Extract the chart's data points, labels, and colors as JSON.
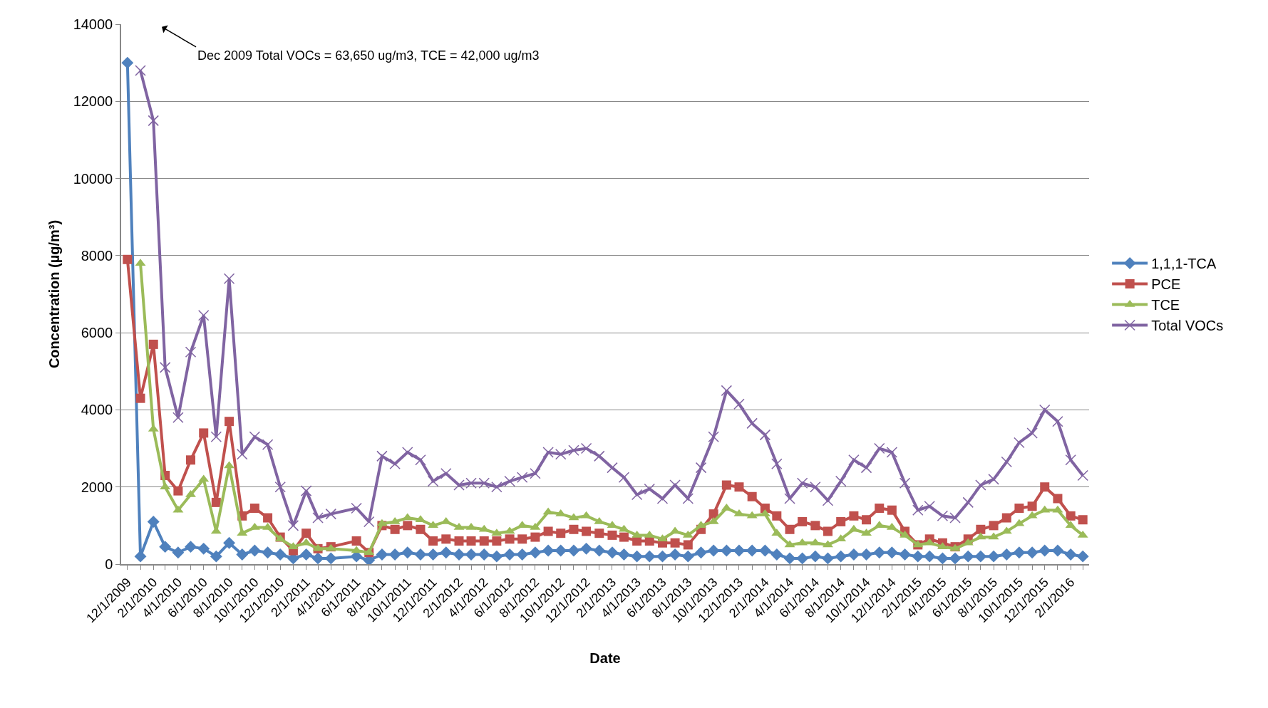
{
  "chart_data": {
    "type": "line",
    "xlabel": "Date",
    "ylabel": "Concentration (µg/m³)",
    "annotations": [
      "Dec 2009 Total VOCs = 63,650 ug/m3, TCE = 42,000 ug/m3"
    ],
    "x": [
      "2009-12-01",
      "2010-01-01",
      "2010-02-01",
      "2010-03-01",
      "2010-04-01",
      "2010-05-01",
      "2010-06-01",
      "2010-07-01",
      "2010-08-01",
      "2010-09-01",
      "2010-10-01",
      "2010-11-01",
      "2010-12-01",
      "2011-01-01",
      "2011-02-01",
      "2011-03-01",
      "2011-04-01",
      "2011-06-01",
      "2011-07-01",
      "2011-08-01",
      "2011-09-01",
      "2011-10-01",
      "2011-11-01",
      "2011-12-01",
      "2012-01-01",
      "2012-02-01",
      "2012-03-01",
      "2012-04-01",
      "2012-05-01",
      "2012-06-01",
      "2012-07-01",
      "2012-08-01",
      "2012-09-01",
      "2012-10-01",
      "2012-11-01",
      "2012-12-01",
      "2013-01-01",
      "2013-02-01",
      "2013-03-01",
      "2013-04-01",
      "2013-05-01",
      "2013-06-01",
      "2013-07-01",
      "2013-08-01",
      "2013-09-01",
      "2013-10-01",
      "2013-11-01",
      "2013-12-01",
      "2014-01-01",
      "2014-02-01",
      "2014-03-01",
      "2014-04-01",
      "2014-05-01",
      "2014-06-01",
      "2014-07-01",
      "2014-08-01",
      "2014-09-01",
      "2014-10-01",
      "2014-11-01",
      "2014-12-01",
      "2015-01-01",
      "2015-02-01",
      "2015-03-01",
      "2015-04-01",
      "2015-05-01",
      "2015-06-01",
      "2015-07-01",
      "2015-08-01",
      "2015-09-01",
      "2015-10-01",
      "2015-11-01",
      "2015-12-01",
      "2016-01-01",
      "2016-02-01",
      "2016-03-01"
    ],
    "series": [
      {
        "name": "1,1,1-TCA",
        "color": "#4f81bd",
        "marker": "diamond",
        "values": [
          13000,
          200,
          1100,
          450,
          300,
          450,
          400,
          200,
          550,
          250,
          350,
          300,
          250,
          150,
          250,
          150,
          150,
          200,
          100,
          250,
          250,
          300,
          250,
          250,
          300,
          250,
          250,
          250,
          200,
          250,
          250,
          300,
          350,
          350,
          350,
          400,
          350,
          300,
          250,
          200,
          200,
          200,
          250,
          200,
          300,
          350,
          350,
          350,
          350,
          350,
          250,
          150,
          150,
          200,
          150,
          200,
          250,
          250,
          300,
          300,
          250,
          200,
          200,
          150,
          150,
          200,
          200,
          200,
          250,
          300,
          300,
          350,
          350,
          250,
          200
        ]
      },
      {
        "name": "PCE",
        "color": "#c0504d",
        "marker": "square",
        "values": [
          7900,
          4300,
          5700,
          2300,
          1900,
          2700,
          3400,
          1600,
          3700,
          1250,
          1450,
          1200,
          700,
          350,
          800,
          400,
          450,
          600,
          300,
          1000,
          900,
          1000,
          900,
          600,
          650,
          600,
          600,
          600,
          600,
          650,
          650,
          700,
          850,
          800,
          900,
          850,
          800,
          750,
          700,
          600,
          600,
          550,
          550,
          500,
          900,
          1300,
          2050,
          2000,
          1750,
          1450,
          1250,
          900,
          1100,
          1000,
          850,
          1100,
          1250,
          1150,
          1450,
          1400,
          850,
          500,
          650,
          550,
          450,
          650,
          900,
          1000,
          1200,
          1450,
          1500,
          2000,
          1700,
          1250,
          1150
        ]
      },
      {
        "name": "TCE",
        "color": "#9bbb59",
        "marker": "triangle",
        "values": [
          null,
          7800,
          3500,
          2000,
          1400,
          1800,
          2200,
          850,
          2550,
          800,
          950,
          950,
          650,
          450,
          550,
          400,
          400,
          350,
          300,
          1050,
          1100,
          1200,
          1150,
          1000,
          1100,
          950,
          950,
          900,
          800,
          850,
          1000,
          950,
          1350,
          1300,
          1200,
          1250,
          1100,
          1000,
          900,
          750,
          750,
          650,
          850,
          750,
          1000,
          1100,
          1450,
          1300,
          1250,
          1300,
          800,
          500,
          550,
          550,
          500,
          650,
          900,
          800,
          1000,
          950,
          750,
          500,
          550,
          450,
          400,
          550,
          700,
          700,
          850,
          1050,
          1250,
          1400,
          1400,
          1000,
          750
        ]
      },
      {
        "name": "Total VOCs",
        "color": "#8064a2",
        "marker": "cross",
        "values": [
          null,
          12800,
          11500,
          5100,
          3800,
          5500,
          6450,
          3300,
          7400,
          2850,
          3300,
          3100,
          2000,
          1000,
          1900,
          1200,
          1300,
          1450,
          1100,
          2800,
          2600,
          2900,
          2700,
          2150,
          2350,
          2050,
          2100,
          2100,
          2000,
          2150,
          2250,
          2350,
          2900,
          2850,
          2950,
          3000,
          2800,
          2500,
          2250,
          1800,
          1950,
          1700,
          2050,
          1700,
          2500,
          3300,
          4500,
          4150,
          3650,
          3350,
          2600,
          1700,
          2100,
          2000,
          1650,
          2150,
          2700,
          2500,
          3000,
          2900,
          2100,
          1400,
          1500,
          1250,
          1200,
          1600,
          2050,
          2200,
          2650,
          3150,
          3400,
          4000,
          3700,
          2700,
          2300
        ]
      }
    ],
    "xlim": [
      "2009-11-16",
      "2016-03-16"
    ],
    "xticks": [
      {
        "value": "2009-12-01",
        "label": "12/1/2009"
      },
      {
        "value": "2010-01-01",
        "label": null
      },
      {
        "value": "2010-02-01",
        "label": "2/1/2010"
      },
      {
        "value": "2010-03-01",
        "label": null
      },
      {
        "value": "2010-04-01",
        "label": "4/1/2010"
      },
      {
        "value": "2010-05-01",
        "label": null
      },
      {
        "value": "2010-06-01",
        "label": "6/1/2010"
      },
      {
        "value": "2010-07-01",
        "label": null
      },
      {
        "value": "2010-08-01",
        "label": "8/1/2010"
      },
      {
        "value": "2010-09-01",
        "label": null
      },
      {
        "value": "2010-10-01",
        "label": "10/1/2010"
      },
      {
        "value": "2010-11-01",
        "label": null
      },
      {
        "value": "2010-12-01",
        "label": "12/1/2010"
      },
      {
        "value": "2011-01-01",
        "label": null
      },
      {
        "value": "2011-02-01",
        "label": "2/1/2011"
      },
      {
        "value": "2011-03-01",
        "label": null
      },
      {
        "value": "2011-04-01",
        "label": "4/1/2011"
      },
      {
        "value": "2011-05-01",
        "label": null
      },
      {
        "value": "2011-06-01",
        "label": "6/1/2011"
      },
      {
        "value": "2011-07-01",
        "label": null
      },
      {
        "value": "2011-08-01",
        "label": "8/1/2011"
      },
      {
        "value": "2011-09-01",
        "label": null
      },
      {
        "value": "2011-10-01",
        "label": "10/1/2011"
      },
      {
        "value": "2011-11-01",
        "label": null
      },
      {
        "value": "2011-12-01",
        "label": "12/1/2011"
      },
      {
        "value": "2012-01-01",
        "label": null
      },
      {
        "value": "2012-02-01",
        "label": "2/1/2012"
      },
      {
        "value": "2012-03-01",
        "label": null
      },
      {
        "value": "2012-04-01",
        "label": "4/1/2012"
      },
      {
        "value": "2012-05-01",
        "label": null
      },
      {
        "value": "2012-06-01",
        "label": "6/1/2012"
      },
      {
        "value": "2012-07-01",
        "label": null
      },
      {
        "value": "2012-08-01",
        "label": "8/1/2012"
      },
      {
        "value": "2012-09-01",
        "label": null
      },
      {
        "value": "2012-10-01",
        "label": "10/1/2012"
      },
      {
        "value": "2012-11-01",
        "label": null
      },
      {
        "value": "2012-12-01",
        "label": "12/1/2012"
      },
      {
        "value": "2013-01-01",
        "label": null
      },
      {
        "value": "2013-02-01",
        "label": "2/1/2013"
      },
      {
        "value": "2013-03-01",
        "label": null
      },
      {
        "value": "2013-04-01",
        "label": "4/1/2013"
      },
      {
        "value": "2013-05-01",
        "label": null
      },
      {
        "value": "2013-06-01",
        "label": "6/1/2013"
      },
      {
        "value": "2013-07-01",
        "label": null
      },
      {
        "value": "2013-08-01",
        "label": "8/1/2013"
      },
      {
        "value": "2013-09-01",
        "label": null
      },
      {
        "value": "2013-10-01",
        "label": "10/1/2013"
      },
      {
        "value": "2013-11-01",
        "label": null
      },
      {
        "value": "2013-12-01",
        "label": "12/1/2013"
      },
      {
        "value": "2014-01-01",
        "label": null
      },
      {
        "value": "2014-02-01",
        "label": "2/1/2014"
      },
      {
        "value": "2014-03-01",
        "label": null
      },
      {
        "value": "2014-04-01",
        "label": "4/1/2014"
      },
      {
        "value": "2014-05-01",
        "label": null
      },
      {
        "value": "2014-06-01",
        "label": "6/1/2014"
      },
      {
        "value": "2014-07-01",
        "label": null
      },
      {
        "value": "2014-08-01",
        "label": "8/1/2014"
      },
      {
        "value": "2014-09-01",
        "label": null
      },
      {
        "value": "2014-10-01",
        "label": "10/1/2014"
      },
      {
        "value": "2014-11-01",
        "label": null
      },
      {
        "value": "2014-12-01",
        "label": "12/1/2014"
      },
      {
        "value": "2015-01-01",
        "label": null
      },
      {
        "value": "2015-02-01",
        "label": "2/1/2015"
      },
      {
        "value": "2015-03-01",
        "label": null
      },
      {
        "value": "2015-04-01",
        "label": "4/1/2015"
      },
      {
        "value": "2015-05-01",
        "label": null
      },
      {
        "value": "2015-06-01",
        "label": "6/1/2015"
      },
      {
        "value": "2015-07-01",
        "label": null
      },
      {
        "value": "2015-08-01",
        "label": "8/1/2015"
      },
      {
        "value": "2015-09-01",
        "label": null
      },
      {
        "value": "2015-10-01",
        "label": "10/1/2015"
      },
      {
        "value": "2015-11-01",
        "label": null
      },
      {
        "value": "2015-12-01",
        "label": "12/1/2015"
      },
      {
        "value": "2016-01-01",
        "label": null
      },
      {
        "value": "2016-02-01",
        "label": "2/1/2016"
      },
      {
        "value": "2016-03-01",
        "label": null
      }
    ],
    "ylim": [
      0,
      14000
    ],
    "yticks": [
      0,
      2000,
      4000,
      6000,
      8000,
      10000,
      12000,
      14000
    ],
    "grid": "y",
    "legend": "right",
    "line_style": "solid"
  }
}
